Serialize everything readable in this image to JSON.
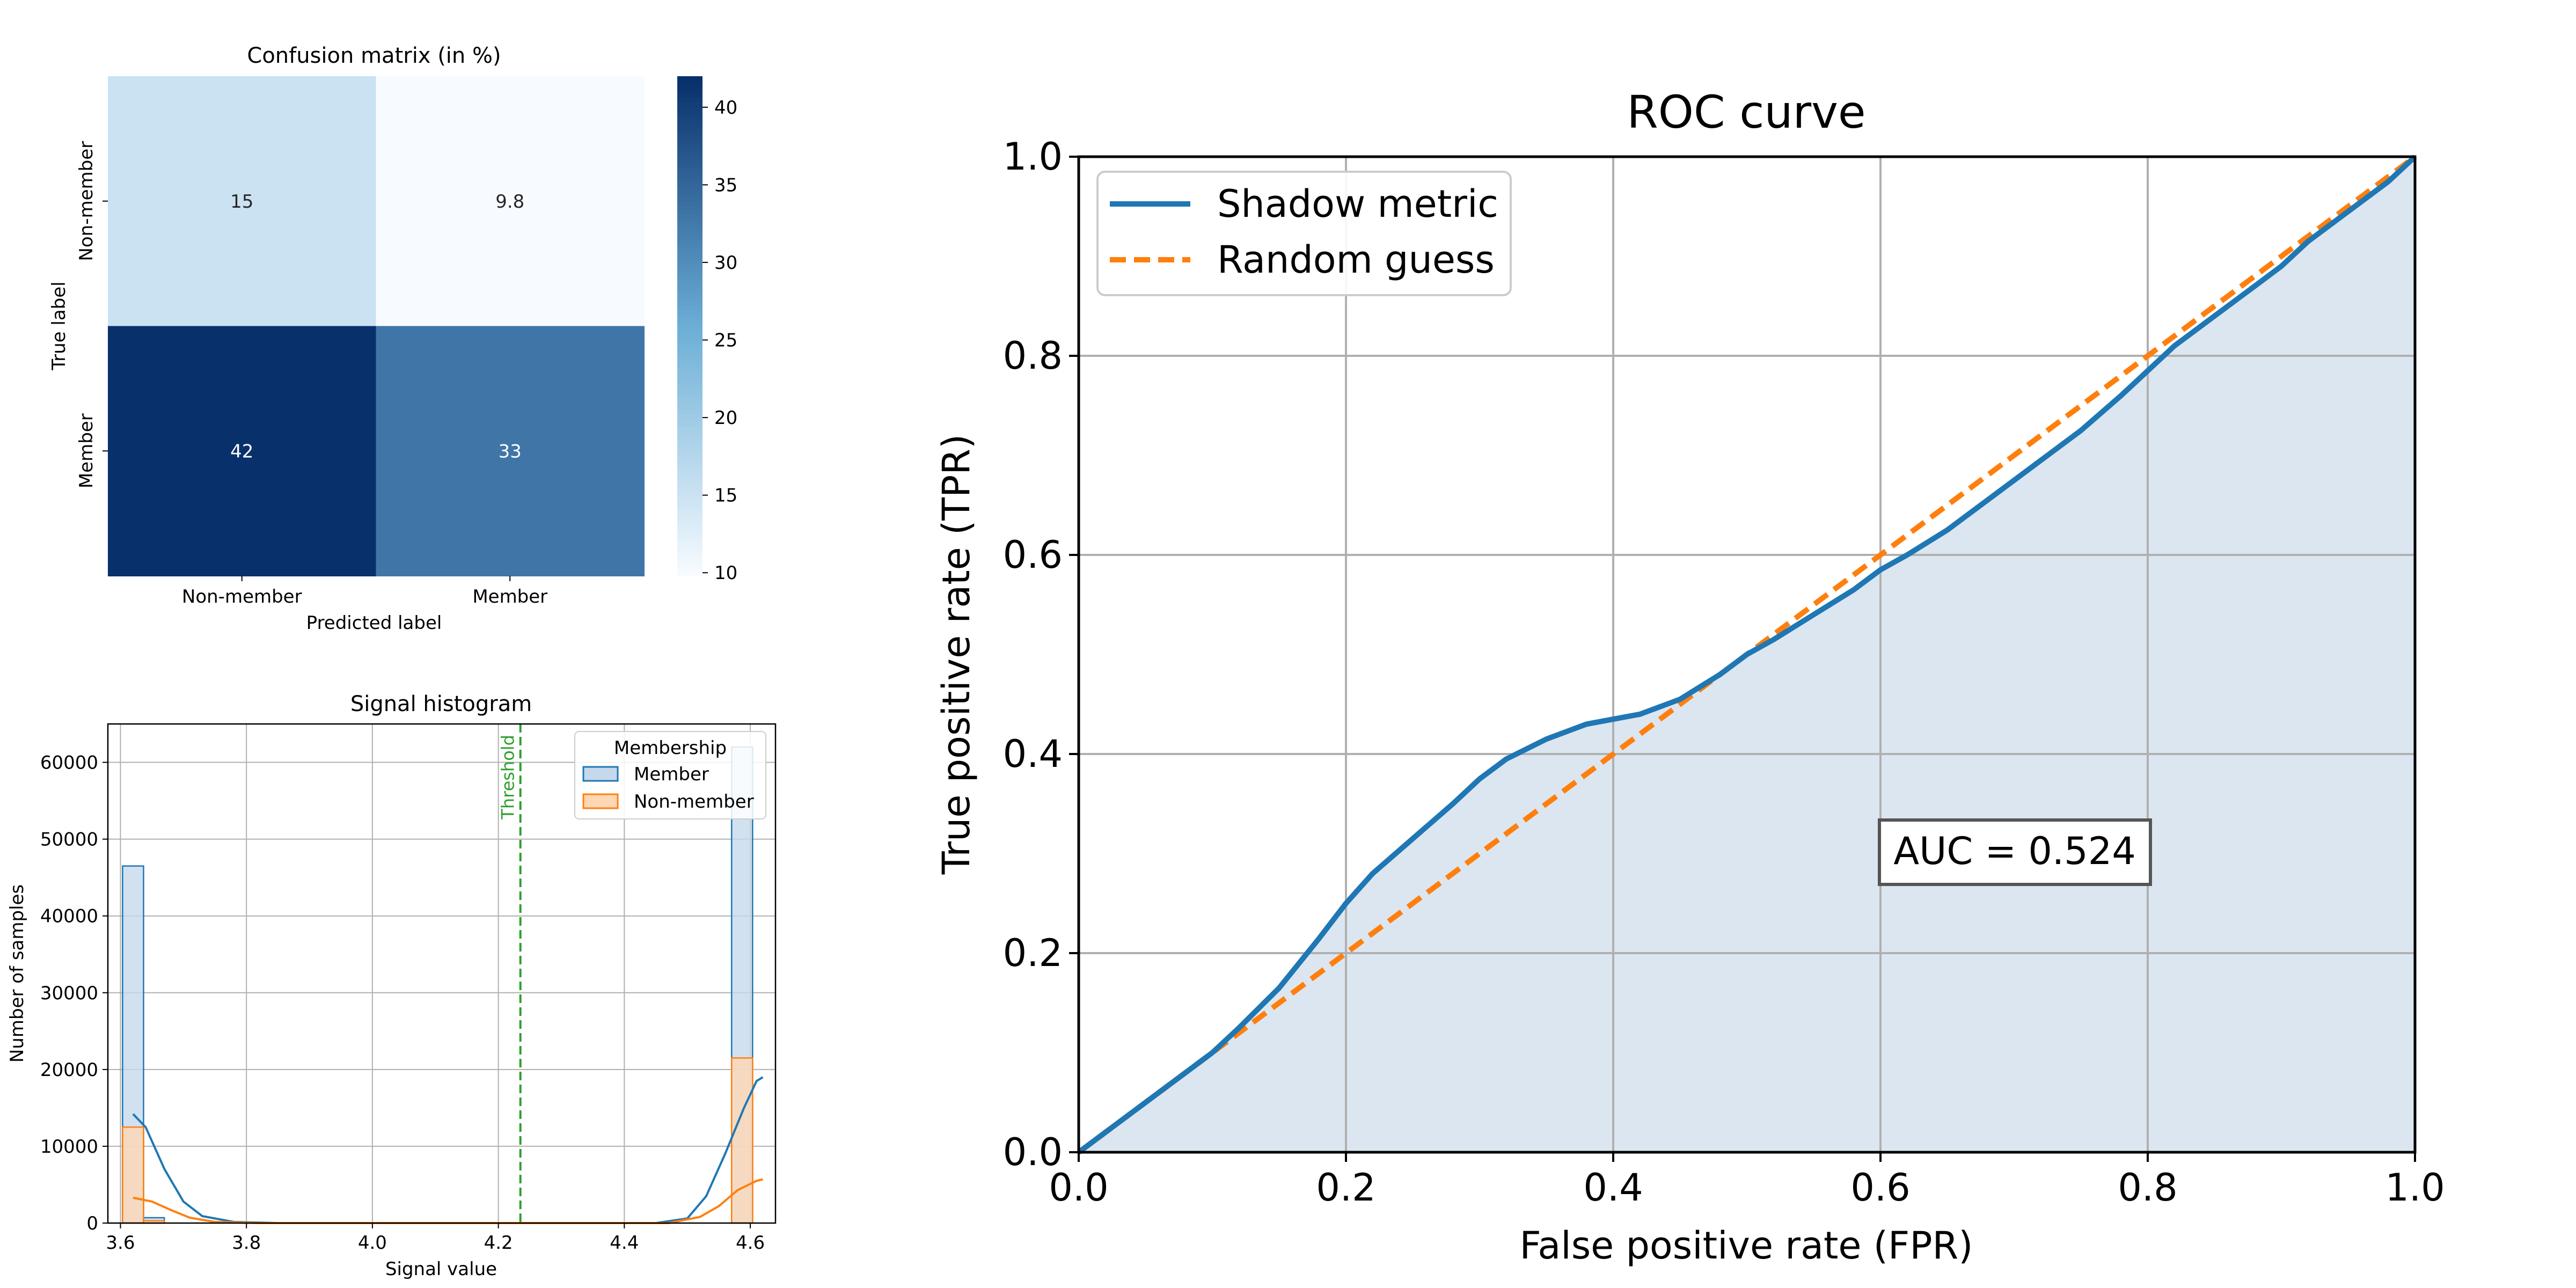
{
  "chart_data": [
    {
      "type": "heatmap",
      "title": "Confusion matrix (in %)",
      "xlabel": "Predicted label",
      "ylabel": "True label",
      "x_categories": [
        "Non-member",
        "Member"
      ],
      "y_categories": [
        "Non-member",
        "Member"
      ],
      "values": [
        [
          15,
          9.8
        ],
        [
          42,
          33
        ]
      ],
      "colorbar": {
        "range": [
          9.8,
          42
        ],
        "ticks": [
          "10",
          "15",
          "20",
          "25",
          "30",
          "35",
          "40"
        ]
      },
      "colormap": {
        "low": "#f7fbff",
        "mid": "#6baed6",
        "high": "#08306b"
      }
    },
    {
      "type": "bar",
      "title": "Signal histogram",
      "xlabel": "Signal value",
      "ylabel": "Number of samples",
      "xlim": [
        3.58,
        4.64
      ],
      "ylim": [
        0,
        65000
      ],
      "x_ticks": [
        "3.6",
        "3.8",
        "4.0",
        "4.2",
        "4.4",
        "4.6"
      ],
      "y_ticks": [
        "0",
        "10000",
        "20000",
        "30000",
        "40000",
        "50000",
        "60000"
      ],
      "grid": true,
      "threshold": {
        "label": "Threshold",
        "x": 4.235,
        "color": "#2ca02c"
      },
      "legend": {
        "title": "Membership",
        "position": "top-right"
      },
      "bin_width": 0.0333,
      "series": [
        {
          "name": "Member",
          "color": "#1f77b4",
          "fill": "#c6d9ec",
          "bins": [
            {
              "x": 3.62,
              "count": 46500
            },
            {
              "x": 3.653,
              "count": 700
            },
            {
              "x": 4.587,
              "count": 62000
            }
          ],
          "kde": [
            [
              3.62,
              14200
            ],
            [
              3.64,
              12500
            ],
            [
              3.67,
              7000
            ],
            [
              3.7,
              2800
            ],
            [
              3.73,
              900
            ],
            [
              3.78,
              150
            ],
            [
              3.85,
              0
            ],
            [
              4.45,
              0
            ],
            [
              4.5,
              600
            ],
            [
              4.53,
              3500
            ],
            [
              4.56,
              9000
            ],
            [
              4.59,
              15000
            ],
            [
              4.61,
              18500
            ],
            [
              4.62,
              19000
            ]
          ]
        },
        {
          "name": "Non-member",
          "color": "#ff7f0e",
          "fill": "#ffd7b5",
          "bins": [
            {
              "x": 3.62,
              "count": 12500
            },
            {
              "x": 3.653,
              "count": 300
            },
            {
              "x": 4.587,
              "count": 21500
            }
          ],
          "kde": [
            [
              3.62,
              3300
            ],
            [
              3.65,
              2800
            ],
            [
              3.68,
              1700
            ],
            [
              3.71,
              700
            ],
            [
              3.75,
              150
            ],
            [
              3.82,
              0
            ],
            [
              4.47,
              0
            ],
            [
              4.52,
              800
            ],
            [
              4.55,
              2200
            ],
            [
              4.58,
              4300
            ],
            [
              4.61,
              5500
            ],
            [
              4.62,
              5700
            ]
          ]
        }
      ]
    },
    {
      "type": "line",
      "title": "ROC curve",
      "xlabel": "False positive rate (FPR)",
      "ylabel": "True positive rate (TPR)",
      "xlim": [
        0,
        1
      ],
      "ylim": [
        0,
        1
      ],
      "x_ticks": [
        "0.0",
        "0.2",
        "0.4",
        "0.6",
        "0.8",
        "1.0"
      ],
      "y_ticks": [
        "0.0",
        "0.2",
        "0.4",
        "0.6",
        "0.8",
        "1.0"
      ],
      "grid": true,
      "legend": {
        "position": "top-left"
      },
      "annotation": "AUC = 0.524",
      "series": [
        {
          "name": "Shadow metric",
          "color": "#1f77b4",
          "style": "solid",
          "fill": "#dce6f1",
          "x": [
            0,
            0.02,
            0.05,
            0.08,
            0.1,
            0.12,
            0.15,
            0.18,
            0.2,
            0.22,
            0.25,
            0.28,
            0.3,
            0.32,
            0.35,
            0.38,
            0.4,
            0.42,
            0.45,
            0.48,
            0.5,
            0.52,
            0.55,
            0.58,
            0.6,
            0.62,
            0.65,
            0.68,
            0.7,
            0.72,
            0.75,
            0.78,
            0.8,
            0.82,
            0.85,
            0.88,
            0.9,
            0.92,
            0.95,
            0.98,
            1.0
          ],
          "y": [
            0,
            0.02,
            0.05,
            0.08,
            0.1,
            0.125,
            0.165,
            0.215,
            0.25,
            0.28,
            0.315,
            0.35,
            0.375,
            0.395,
            0.415,
            0.43,
            0.435,
            0.44,
            0.455,
            0.48,
            0.5,
            0.515,
            0.54,
            0.565,
            0.585,
            0.6,
            0.625,
            0.655,
            0.675,
            0.695,
            0.725,
            0.76,
            0.785,
            0.81,
            0.84,
            0.87,
            0.89,
            0.915,
            0.945,
            0.975,
            1.0
          ]
        },
        {
          "name": "Random guess",
          "color": "#ff7f0e",
          "style": "dashed",
          "x": [
            0,
            1
          ],
          "y": [
            0,
            1
          ]
        }
      ]
    }
  ]
}
